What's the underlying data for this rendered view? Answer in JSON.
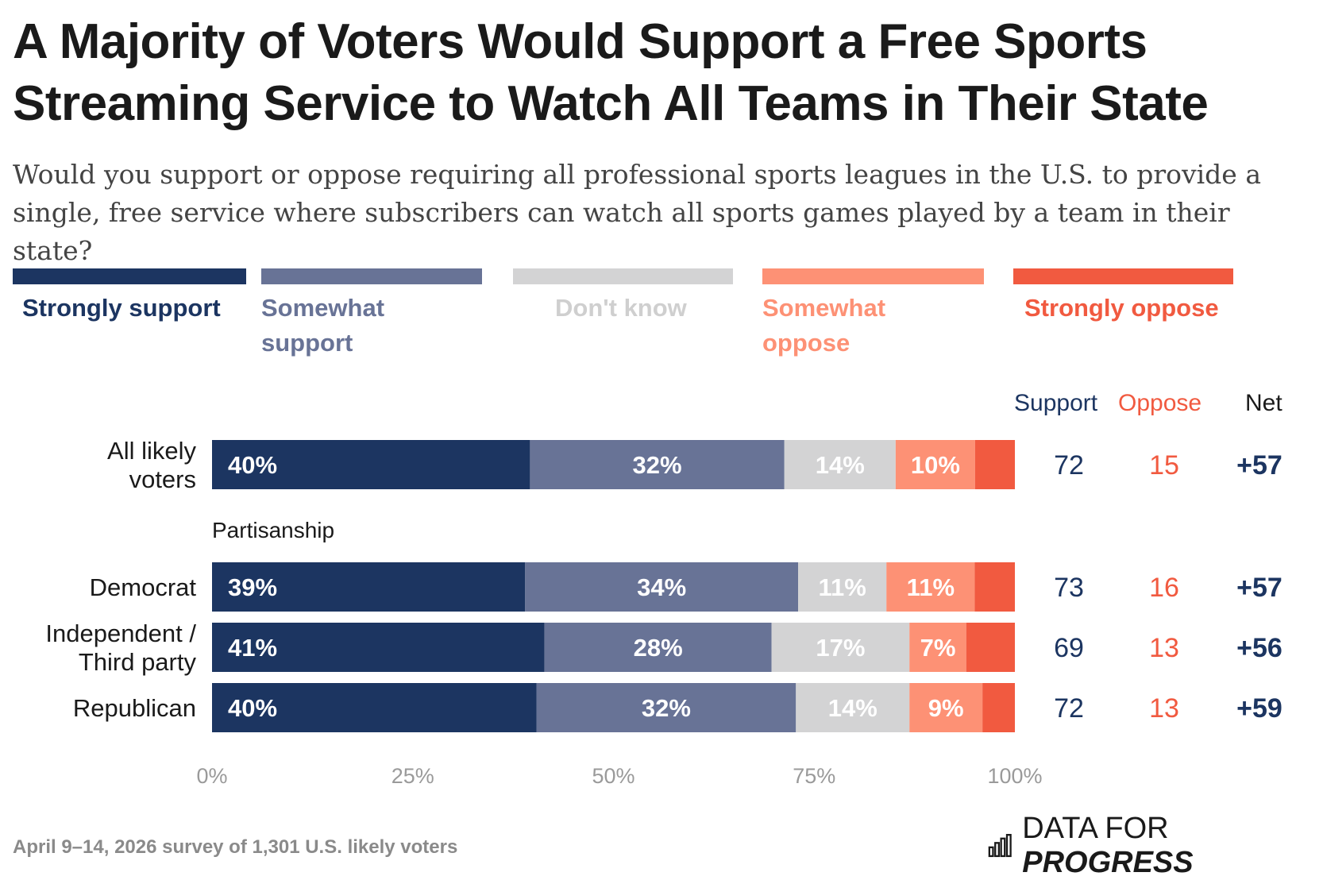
{
  "title": "A Majority of Voters Would Support a Free Sports Streaming Service to Watch All Teams in Their State",
  "subtitle": "Would you support or oppose requiring all professional sports leagues in the U.S. to provide a single, free service where subscribers can watch all sports games played by a team in their state?",
  "legend": [
    {
      "label": "Strongly support",
      "color": "#1c3561"
    },
    {
      "label": "Somewhat support",
      "color": "#687396"
    },
    {
      "label": "Don't know",
      "color": "#d3d3d4"
    },
    {
      "label": "Somewhat oppose",
      "color": "#fd9175"
    },
    {
      "label": "Strongly oppose",
      "color": "#f15a40"
    }
  ],
  "columns": {
    "support": "Support",
    "oppose": "Oppose",
    "net": "Net"
  },
  "colors": {
    "support_text": "#1c3561",
    "oppose_text": "#f15a40",
    "axis_text": "#9a9a9a"
  },
  "footer": {
    "note": "April 9–14, 2026 survey of 1,301 U.S. likely voters",
    "brand_light": "DATA FOR ",
    "brand_strong": "PROGRESS"
  },
  "chart_data": {
    "type": "bar",
    "orientation": "horizontal-stacked",
    "xlim": [
      0,
      100
    ],
    "x_ticks": [
      "0%",
      "25%",
      "50%",
      "75%",
      "100%"
    ],
    "group_label": "Partisanship",
    "series": [
      {
        "name": "Strongly support",
        "values": [
          40,
          39,
          41,
          40
        ]
      },
      {
        "name": "Somewhat support",
        "values": [
          32,
          34,
          28,
          32
        ]
      },
      {
        "name": "Don't know",
        "values": [
          14,
          11,
          17,
          14
        ]
      },
      {
        "name": "Somewhat oppose",
        "values": [
          10,
          11,
          7,
          9
        ]
      },
      {
        "name": "Strongly oppose",
        "values": [
          5,
          5,
          6,
          4
        ]
      }
    ],
    "rows": [
      {
        "label": "All likely voters",
        "lines": [
          "All likely",
          "voters"
        ],
        "segment_labels": [
          "40%",
          "32%",
          "14%",
          "10%",
          ""
        ],
        "support": "72",
        "oppose": "15",
        "net": "+57"
      },
      {
        "label": "Democrat",
        "lines": [
          "Democrat"
        ],
        "segment_labels": [
          "39%",
          "34%",
          "11%",
          "11%",
          ""
        ],
        "support": "73",
        "oppose": "16",
        "net": "+57"
      },
      {
        "label": "Independent / Third party",
        "lines": [
          "Independent /",
          "Third party"
        ],
        "segment_labels": [
          "41%",
          "28%",
          "17%",
          "7%",
          ""
        ],
        "support": "69",
        "oppose": "13",
        "net": "+56"
      },
      {
        "label": "Republican",
        "lines": [
          "Republican"
        ],
        "segment_labels": [
          "40%",
          "32%",
          "14%",
          "9%",
          ""
        ],
        "support": "72",
        "oppose": "13",
        "net": "+59"
      }
    ]
  }
}
